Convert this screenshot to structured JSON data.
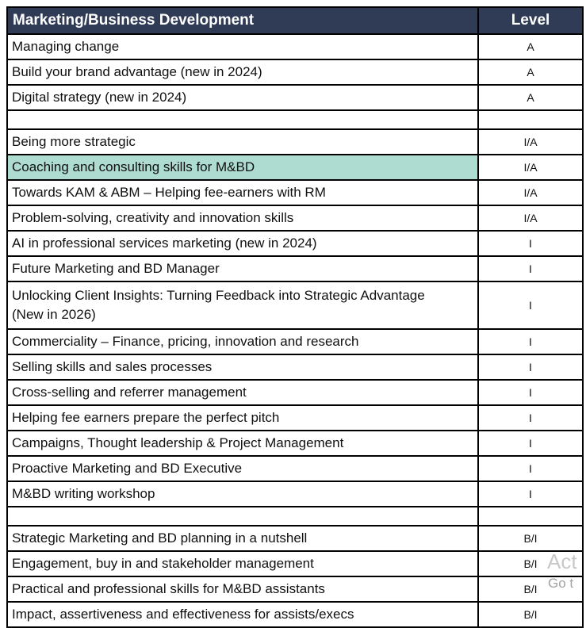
{
  "header": {
    "title": "Marketing/Business Development",
    "level_label": "Level"
  },
  "colors": {
    "header_bg": "#303b56",
    "header_text": "#ffffff",
    "highlight_bg": "#aedcd0",
    "border": "#000000",
    "text": "#101010",
    "row_bg": "#ffffff",
    "watermark_line1": "#c8c8c8",
    "watermark_line2": "#a2a2a2"
  },
  "rows": [
    {
      "name": "Managing change",
      "level": "A",
      "type": "normal"
    },
    {
      "name": "Build your brand advantage (new in 2024)",
      "level": "A",
      "type": "normal"
    },
    {
      "name": "Digital strategy (new in 2024)",
      "level": "A",
      "type": "normal"
    },
    {
      "name": "",
      "level": "",
      "type": "spacer"
    },
    {
      "name": "Being more strategic",
      "level": "I/A",
      "type": "normal"
    },
    {
      "name": "Coaching and consulting skills for M&BD",
      "level": "I/A",
      "type": "highlight"
    },
    {
      "name": "Towards KAM & ABM – Helping fee-earners with RM",
      "level": "I/A",
      "type": "normal"
    },
    {
      "name": "Problem-solving, creativity and innovation skills",
      "level": "I/A",
      "type": "normal"
    },
    {
      "name": "AI in professional services marketing (new in 2024)",
      "level": "I",
      "type": "normal"
    },
    {
      "name": "Future Marketing and BD Manager",
      "level": "I",
      "type": "normal"
    },
    {
      "name": "Unlocking Client Insights: Turning Feedback into Strategic Advantage (New in 2026)",
      "level": "I",
      "type": "tall"
    },
    {
      "name": "Commerciality – Finance, pricing, innovation and research",
      "level": "I",
      "type": "normal"
    },
    {
      "name": "Selling skills and sales processes",
      "level": "I",
      "type": "normal"
    },
    {
      "name": "Cross-selling and referrer management",
      "level": "I",
      "type": "normal"
    },
    {
      "name": "Helping fee earners prepare the perfect pitch",
      "level": "I",
      "type": "normal"
    },
    {
      "name": "Campaigns, Thought leadership & Project Management",
      "level": "I",
      "type": "normal"
    },
    {
      "name": "Proactive Marketing and BD Executive",
      "level": "I",
      "type": "normal"
    },
    {
      "name": "M&BD writing workshop",
      "level": "I",
      "type": "normal"
    },
    {
      "name": "",
      "level": "",
      "type": "spacer"
    },
    {
      "name": "Strategic Marketing and BD planning in a nutshell",
      "level": "B/I",
      "type": "normal"
    },
    {
      "name": "Engagement, buy in and stakeholder management",
      "level": "B/I",
      "type": "normal"
    },
    {
      "name": "Practical and professional skills for M&BD assistants",
      "level": "B/I",
      "type": "normal"
    },
    {
      "name": "Impact, assertiveness and effectiveness for assists/execs",
      "level": "B/I",
      "type": "normal"
    }
  ],
  "watermark": {
    "line1": "Act",
    "line2": "Go t"
  }
}
